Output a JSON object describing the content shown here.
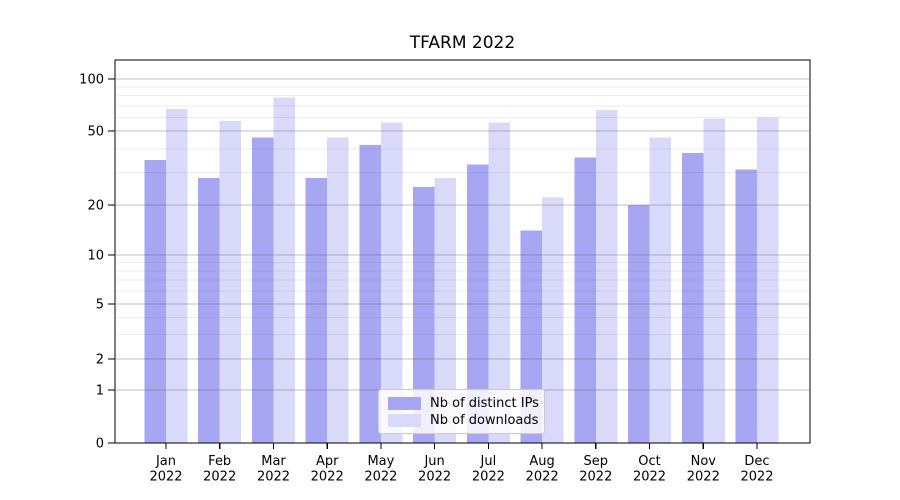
{
  "chart_data": {
    "type": "bar",
    "title": "TFARM 2022",
    "categories": [
      "Jan",
      "Feb",
      "Mar",
      "Apr",
      "May",
      "Jun",
      "Jul",
      "Aug",
      "Sep",
      "Oct",
      "Nov",
      "Dec"
    ],
    "year_suffix": "2022",
    "series": [
      {
        "name": "Nb of distinct IPs",
        "color": "#a6a6f2",
        "values": [
          35,
          28,
          46,
          28,
          42,
          25,
          33,
          14,
          36,
          20,
          38,
          31
        ]
      },
      {
        "name": "Nb of downloads",
        "color": "#d9d9f9",
        "values": [
          67,
          57,
          78,
          46,
          56,
          28,
          56,
          22,
          66,
          46,
          59,
          60
        ]
      }
    ],
    "xlabel": "",
    "ylabel": "",
    "yaxis": {
      "scale": "symlog",
      "ticks": [
        0,
        1,
        2,
        5,
        10,
        20,
        50,
        100
      ],
      "minor_gridlines": [
        3,
        4,
        6,
        7,
        8,
        9,
        30,
        40,
        60,
        70,
        80,
        90
      ],
      "range": [
        0,
        126
      ]
    },
    "grid": true,
    "legend_position": "lower center",
    "colors": {
      "bar_distinct_ips": "#a6a6f2",
      "bar_downloads": "#d9d9f9",
      "major_grid": "rgba(80,80,80,0.35)",
      "minor_grid": "rgba(80,80,80,0.10)",
      "axis": "#000000",
      "text": "#000000",
      "legend_border": "#cccccc"
    }
  }
}
